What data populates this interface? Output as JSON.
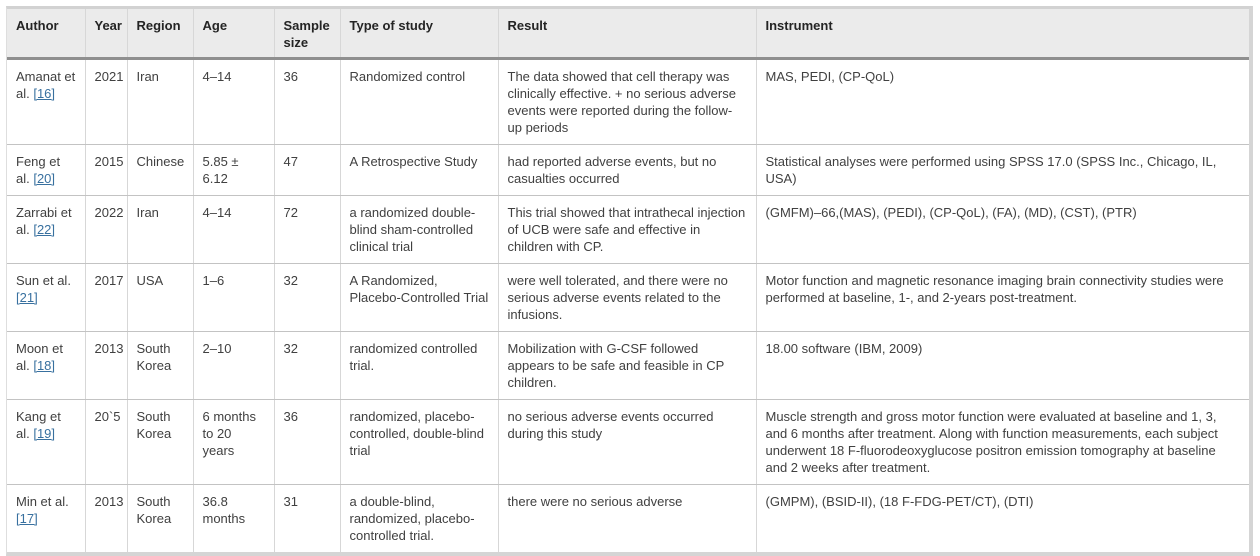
{
  "colors": {
    "link": "#38709f",
    "header_bg": "#ebebeb",
    "header_rule": "#8f8f8f"
  },
  "table": {
    "columns": [
      {
        "key": "author",
        "label": "Author"
      },
      {
        "key": "year",
        "label": "Year"
      },
      {
        "key": "region",
        "label": "Region"
      },
      {
        "key": "age",
        "label": "Age"
      },
      {
        "key": "sample_size",
        "label": "Sample size"
      },
      {
        "key": "type",
        "label": "Type of study"
      },
      {
        "key": "result",
        "label": "Result"
      },
      {
        "key": "instrument",
        "label": "Instrument"
      }
    ],
    "rows": [
      {
        "author_name": "Amanat et al.",
        "ref": "[16]",
        "year": "2021",
        "region": "Iran",
        "age": "4–14",
        "sample_size": "36",
        "type": "Randomized control",
        "result": "The data showed that cell therapy was clinically effective. + no serious adverse events were reported during the follow-up periods",
        "instrument": "MAS, PEDI, (CP-QoL)"
      },
      {
        "author_name": "Feng et al.",
        "ref": "[20]",
        "year": "2015",
        "region": "Chinese",
        "age": "5.85 ± 6.12",
        "sample_size": "47",
        "type": "A Retrospective Study",
        "result": "had reported adverse events, but no casualties occurred",
        "instrument": "Statistical analyses were performed using SPSS 17.0 (SPSS Inc., Chicago, IL, USA)"
      },
      {
        "author_name": "Zarrabi et al.",
        "ref": "[22]",
        "year": "2022",
        "region": "Iran",
        "age": "4–14",
        "sample_size": "72",
        "type": "a randomized double-blind sham-controlled clinical trial",
        "result": "This trial showed that intrathecal injection of UCB were safe and effective in children with CP.",
        "instrument": "(GMFM)–66,(MAS), (PEDI), (CP-QoL), (FA), (MD), (CST), (PTR)"
      },
      {
        "author_name": "Sun et al.",
        "ref": "[21]",
        "year": "2017",
        "region": "USA",
        "age": "1–6",
        "sample_size": "32",
        "type": "A Randomized, Placebo-Controlled Trial",
        "result": "were well tolerated, and there were no serious adverse events related to the infusions.",
        "instrument": "Motor function and magnetic resonance imaging brain connectivity studies were performed at baseline, 1-, and 2-years post-treatment."
      },
      {
        "author_name": "Moon et al.",
        "ref": "[18]",
        "year": "2013",
        "region": "South Korea",
        "age": "2–10",
        "sample_size": "32",
        "type": "randomized controlled trial.",
        "result": "Mobilization with G-CSF followed appears to be safe and feasible in CP children.",
        "instrument": "18.00 software (IBM, 2009)"
      },
      {
        "author_name": "Kang et al.",
        "ref": "[19]",
        "year": "20`5",
        "region": "South Korea",
        "age": "6 months to 20 years",
        "sample_size": "36",
        "type": "randomized, placebo-controlled, double-blind trial",
        "result": "no serious adverse events occurred during this study",
        "instrument": "Muscle strength and gross motor function were evaluated at baseline and 1, 3, and 6 months after treatment. Along with function measurements, each subject underwent 18 F-fluorodeoxyglucose positron emission tomography at baseline and 2 weeks after treatment."
      },
      {
        "author_name": "Min et al.",
        "ref": "[17]",
        "year": "2013",
        "region": "South Korea",
        "age": "36.8 months",
        "sample_size": "31",
        "type": "a double-blind, randomized, placebo-controlled trial.",
        "result": "there were no serious adverse",
        "instrument": "(GMPM), (BSID-II), (18 F-FDG-PET/CT), (DTI)"
      }
    ]
  }
}
